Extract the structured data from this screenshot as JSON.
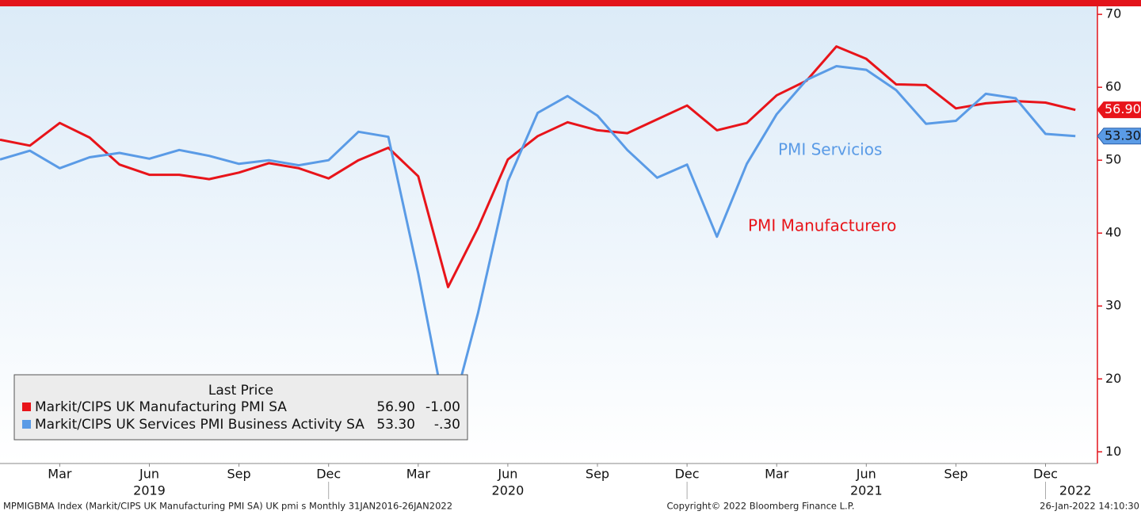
{
  "chart_data": {
    "type": "line",
    "x": [
      "2019-01",
      "2019-02",
      "2019-03",
      "2019-04",
      "2019-05",
      "2019-06",
      "2019-07",
      "2019-08",
      "2019-09",
      "2019-10",
      "2019-11",
      "2019-12",
      "2020-01",
      "2020-02",
      "2020-03",
      "2020-04",
      "2020-05",
      "2020-06",
      "2020-07",
      "2020-08",
      "2020-09",
      "2020-10",
      "2020-11",
      "2020-12",
      "2021-01",
      "2021-02",
      "2021-03",
      "2021-04",
      "2021-05",
      "2021-06",
      "2021-07",
      "2021-08",
      "2021-09",
      "2021-10",
      "2021-11",
      "2021-12",
      "2022-01"
    ],
    "series": [
      {
        "name": "Markit/CIPS UK Manufacturing PMI SA",
        "color": "#e8141a",
        "values": [
          52.8,
          52.0,
          55.1,
          53.1,
          49.4,
          48.0,
          48.0,
          47.4,
          48.3,
          49.6,
          48.9,
          47.5,
          50.0,
          51.7,
          47.8,
          32.6,
          40.7,
          50.1,
          53.3,
          55.2,
          54.1,
          53.7,
          55.6,
          57.5,
          54.1,
          55.1,
          58.9,
          60.9,
          65.6,
          63.9,
          60.4,
          60.3,
          57.1,
          57.8,
          58.1,
          57.9,
          56.9
        ],
        "value_labels": [
          null,
          null,
          null,
          null,
          null,
          null,
          null,
          null,
          null,
          null,
          null,
          null,
          null,
          null,
          null,
          null,
          null,
          null,
          null,
          null,
          null,
          null,
          null,
          null,
          null,
          null,
          null,
          null,
          null,
          null,
          null,
          null,
          null,
          null,
          null,
          null,
          "56.90"
        ],
        "change": "-1.00"
      },
      {
        "name": "Markit/CIPS UK Services PMI Business Activity SA",
        "color": "#5a9be6",
        "values": [
          50.1,
          51.3,
          48.9,
          50.4,
          51.0,
          50.2,
          51.4,
          50.6,
          49.5,
          50.0,
          49.3,
          50.0,
          53.9,
          53.2,
          34.5,
          13.4,
          29.0,
          47.1,
          56.5,
          58.8,
          56.1,
          51.4,
          47.6,
          49.4,
          39.5,
          49.5,
          56.3,
          61.0,
          62.9,
          62.4,
          59.6,
          55.0,
          55.4,
          59.1,
          58.5,
          53.6,
          53.3
        ],
        "value_labels": [
          null,
          null,
          null,
          null,
          null,
          null,
          null,
          null,
          null,
          null,
          null,
          null,
          null,
          null,
          null,
          null,
          null,
          null,
          null,
          null,
          null,
          null,
          null,
          null,
          null,
          null,
          null,
          null,
          null,
          null,
          null,
          null,
          null,
          null,
          null,
          null,
          "53.30"
        ],
        "change": "-.30"
      }
    ],
    "ylim": [
      8.4,
      71.1
    ],
    "yticks": [
      10,
      20,
      30,
      40,
      50,
      60,
      70
    ],
    "xticks": [
      {
        "value": "2019-03",
        "label": "Mar"
      },
      {
        "value": "2019-06",
        "label": "Jun"
      },
      {
        "value": "2019-09",
        "label": "Sep"
      },
      {
        "value": "2019-12",
        "label": "Dec"
      },
      {
        "value": "2020-03",
        "label": "Mar"
      },
      {
        "value": "2020-06",
        "label": "Jun"
      },
      {
        "value": "2020-09",
        "label": "Sep"
      },
      {
        "value": "2020-12",
        "label": "Dec"
      },
      {
        "value": "2021-03",
        "label": "Mar"
      },
      {
        "value": "2021-06",
        "label": "Jun"
      },
      {
        "value": "2021-09",
        "label": "Sep"
      },
      {
        "value": "2021-12",
        "label": "Dec"
      }
    ],
    "year_labels": [
      {
        "value": "2019-06",
        "label": "2019"
      },
      {
        "value": "2020-06",
        "label": "2020"
      },
      {
        "value": "2021-06",
        "label": "2021"
      },
      {
        "value": "2022-01",
        "label": "2022"
      }
    ],
    "legend_title": "Last Price",
    "annotations": [
      "PMI Servicios",
      "PMI Manufacturero"
    ],
    "footer": [
      "MPMIGBMA Index (Markit/CIPS UK Manufacturing PMI SA) UK pmi s  Monthly 31JAN2016-26JAN2022",
      "Copyright© 2022 Bloomberg Finance L.P.",
      "26-Jan-2022 14:10:30"
    ]
  }
}
